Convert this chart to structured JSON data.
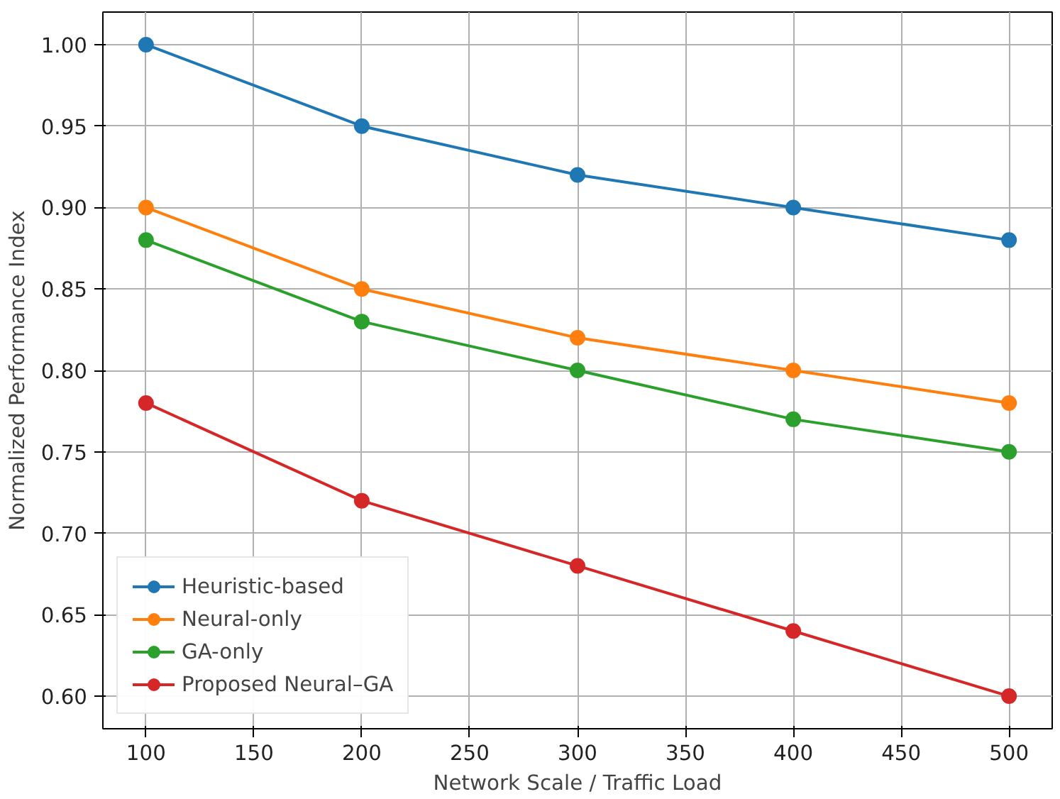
{
  "chart_data": {
    "type": "line",
    "xlabel": "Network Scale / Traffic Load",
    "ylabel": "Normalized Performance Index",
    "x": [
      100,
      200,
      300,
      400,
      500
    ],
    "series": [
      {
        "name": "Heuristic-based",
        "color": "#1f77b4",
        "values": [
          1.0,
          0.95,
          0.92,
          0.9,
          0.88
        ]
      },
      {
        "name": "Neural-only",
        "color": "#ff7f0e",
        "values": [
          0.9,
          0.85,
          0.82,
          0.8,
          0.78
        ]
      },
      {
        "name": "GA-only",
        "color": "#2ca02c",
        "values": [
          0.88,
          0.83,
          0.8,
          0.77,
          0.75
        ]
      },
      {
        "name": "Proposed Neural–GA",
        "color": "#d62728",
        "values": [
          0.78,
          0.72,
          0.68,
          0.64,
          0.6
        ]
      }
    ],
    "xlim": [
      80,
      520
    ],
    "ylim": [
      0.58,
      1.02
    ],
    "xticks": [
      100,
      150,
      200,
      250,
      300,
      350,
      400,
      450,
      500
    ],
    "yticks": [
      {
        "value": 0.6,
        "label": "0.60"
      },
      {
        "value": 0.65,
        "label": "0.65"
      },
      {
        "value": 0.7,
        "label": "0.70"
      },
      {
        "value": 0.75,
        "label": "0.75"
      },
      {
        "value": 0.8,
        "label": "0.80"
      },
      {
        "value": 0.85,
        "label": "0.85"
      },
      {
        "value": 0.9,
        "label": "0.90"
      },
      {
        "value": 0.95,
        "label": "0.95"
      },
      {
        "value": 1.0,
        "label": "1.00"
      }
    ],
    "grid": true,
    "legend": "bottom left",
    "marker": "circle",
    "line_style": "solid"
  }
}
